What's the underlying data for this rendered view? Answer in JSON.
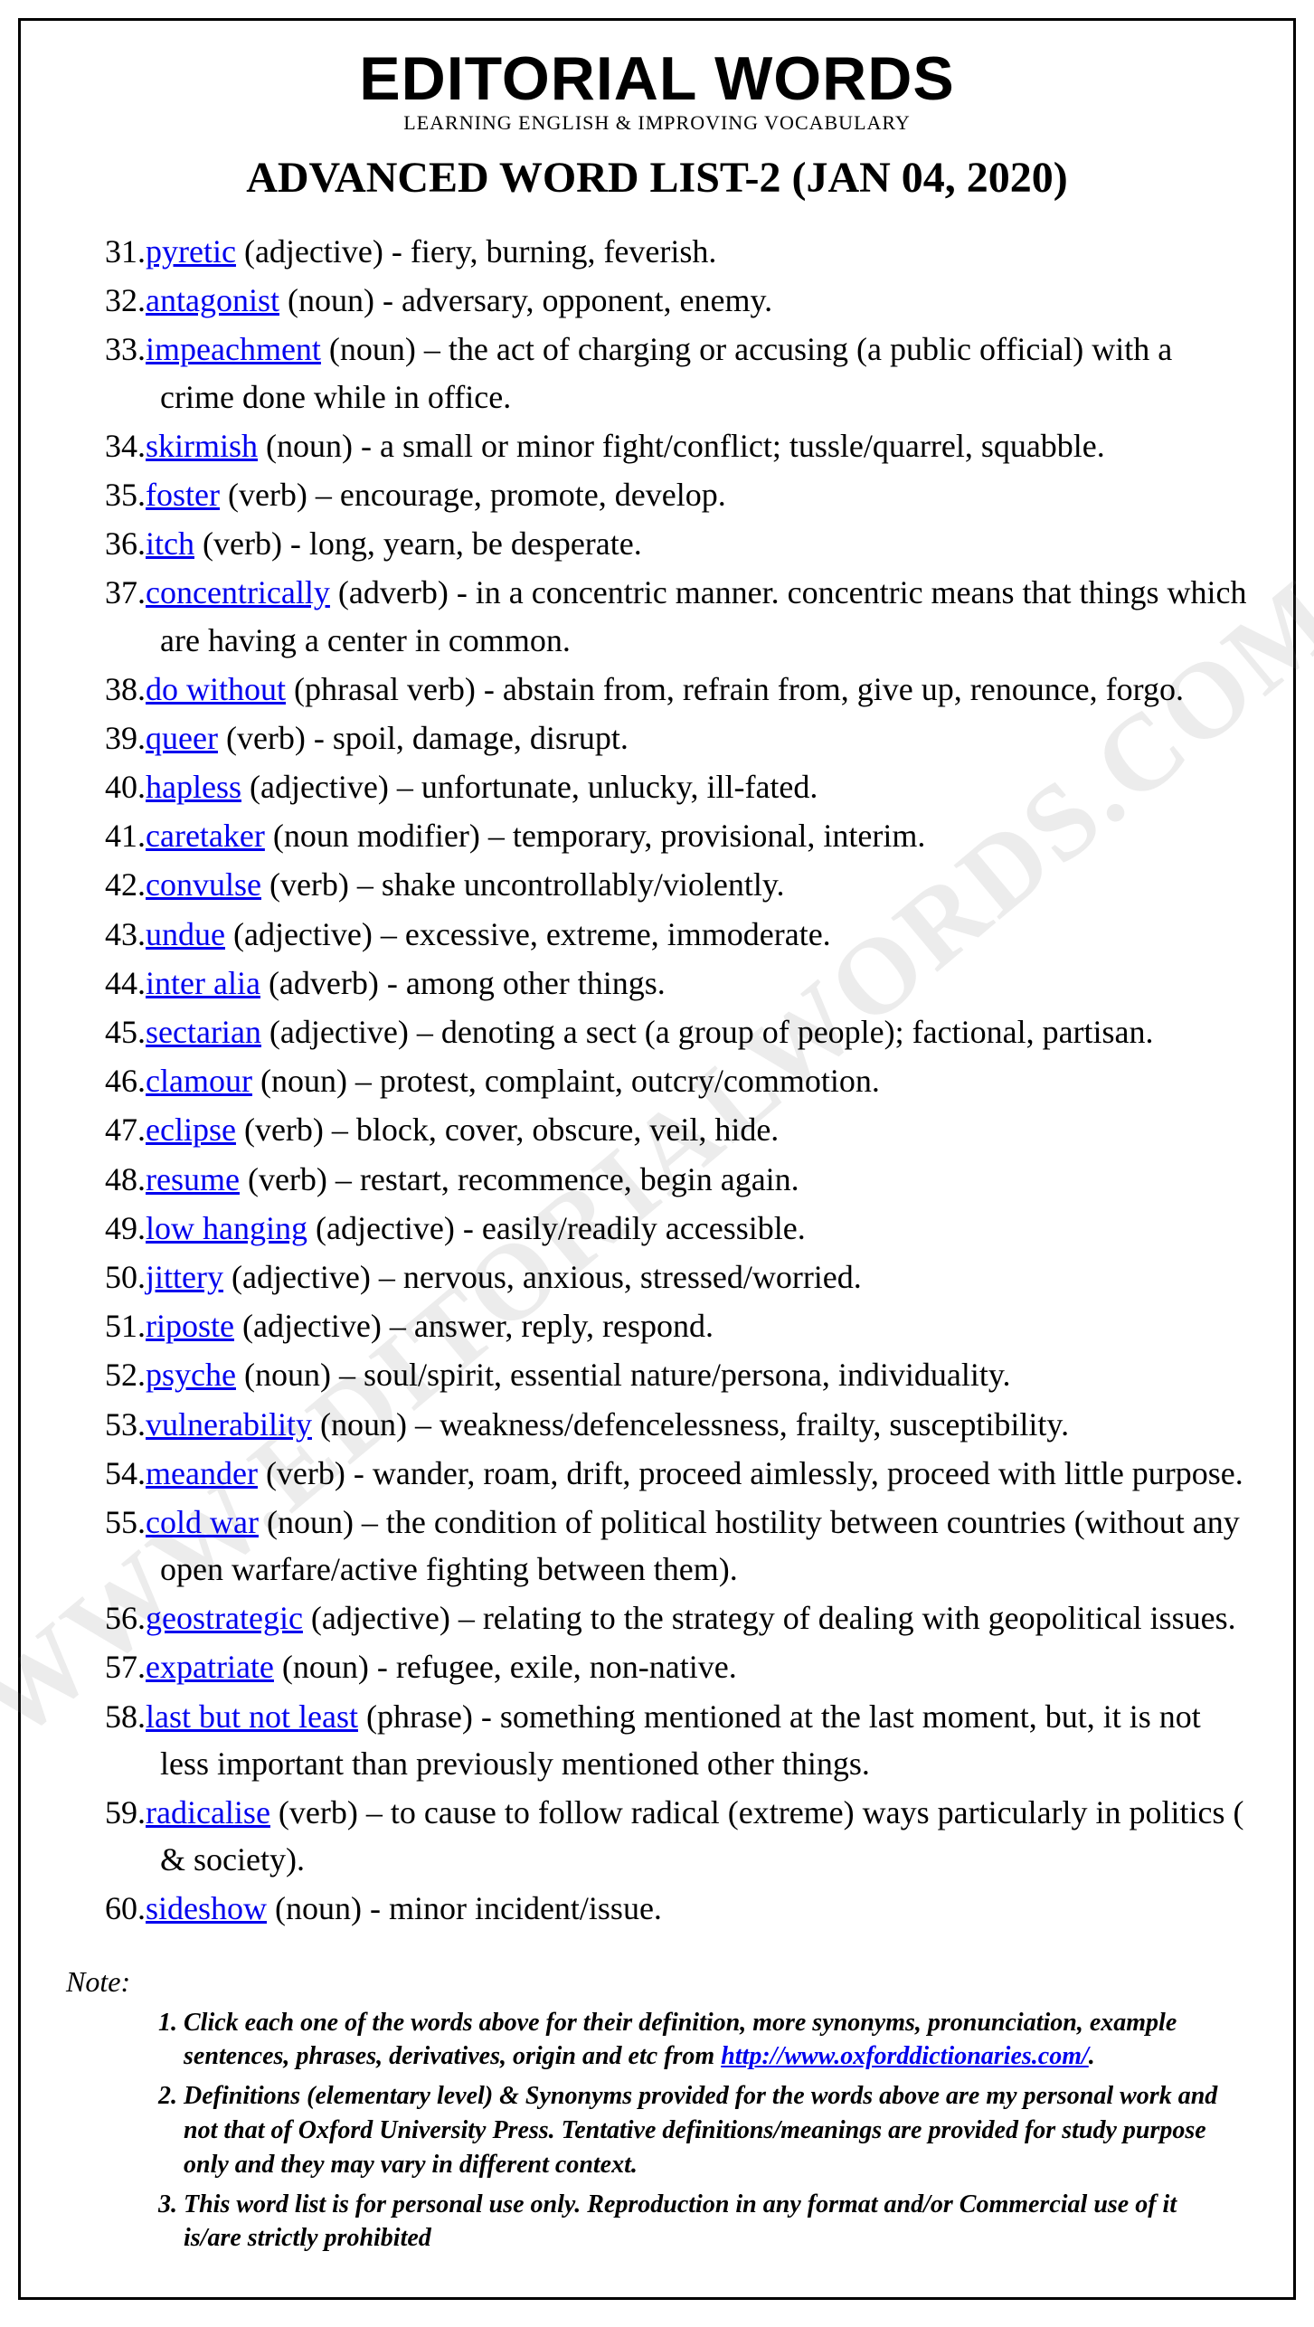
{
  "header": {
    "brand": "EDITORIAL WORDS",
    "tagline": "LEARNING ENGLISH & IMPROVING VOCABULARY"
  },
  "title": "ADVANCED WORD LIST-2 (JAN 04, 2020)",
  "watermark": "WWW.EDITORIALWORDS.COM",
  "start_number": 31,
  "entries": [
    {
      "word": "pyretic",
      "pos": "(adjective)",
      "def": "- fiery, burning, feverish."
    },
    {
      "word": "antagonist",
      "pos": "(noun)",
      "def": "- adversary, opponent, enemy."
    },
    {
      "word": "impeachment",
      "pos": "(noun)",
      "def": "– the act of charging or accusing (a public official) with a crime done while in office."
    },
    {
      "word": "skirmish",
      "pos": "(noun)",
      "def": "- a small or minor fight/conflict; tussle/quarrel, squabble."
    },
    {
      "word": "foster",
      "pos": "(verb)",
      "def": "– encourage, promote, develop."
    },
    {
      "word": "itch",
      "pos": "(verb)",
      "def": "- long, yearn, be desperate."
    },
    {
      "word": "concentrically",
      "pos": "(adverb)",
      "def": "- in a concentric manner. concentric means that things which are having a center in common."
    },
    {
      "word": "do without",
      "pos": "(phrasal verb)",
      "def": "- abstain from, refrain from, give up, renounce, forgo."
    },
    {
      "word": "queer",
      "pos": "(verb)",
      "def": "- spoil, damage, disrupt."
    },
    {
      "word": "hapless",
      "pos": "(adjective)",
      "def": "– unfortunate, unlucky, ill-fated."
    },
    {
      "word": "caretaker",
      "pos": "(noun modifier)",
      "def": "– temporary, provisional, interim."
    },
    {
      "word": "convulse",
      "pos": "(verb)",
      "def": "– shake uncontrollably/violently."
    },
    {
      "word": "undue",
      "pos": "(adjective)",
      "def": "– excessive, extreme, immoderate."
    },
    {
      "word": "inter alia",
      "pos": "(adverb)",
      "def": "- among other things."
    },
    {
      "word": "sectarian",
      "pos": "(adjective)",
      "def": "– denoting a sect (a group of people); factional, partisan."
    },
    {
      "word": "clamour",
      "pos": "(noun)",
      "def": "– protest, complaint, outcry/commotion."
    },
    {
      "word": "eclipse",
      "pos": "(verb)",
      "def": "– block, cover, obscure, veil, hide."
    },
    {
      "word": "resume",
      "pos": "(verb)",
      "def": "– restart, recommence, begin again."
    },
    {
      "word": "low hanging",
      "pos": "(adjective)",
      "def": "- easily/readily accessible."
    },
    {
      "word": "jittery",
      "pos": "(adjective)",
      "def": "– nervous, anxious, stressed/worried."
    },
    {
      "word": "riposte",
      "pos": "(adjective)",
      "def": "– answer, reply, respond."
    },
    {
      "word": "psyche",
      "pos": "(noun)",
      "def": "– soul/spirit, essential nature/persona, individuality."
    },
    {
      "word": "vulnerability",
      "pos": "(noun)",
      "def": "– weakness/defencelessness, frailty, susceptibility."
    },
    {
      "word": "meander",
      "pos": "(verb)",
      "def": "- wander, roam, drift, proceed aimlessly, proceed with little purpose."
    },
    {
      "word": "cold war",
      "pos": "(noun)",
      "def": "– the condition of political hostility between countries (without any open warfare/active fighting between them)."
    },
    {
      "word": "geostrategic",
      "pos": "(adjective)",
      "def": "– relating to the strategy of dealing with geopolitical issues."
    },
    {
      "word": "expatriate",
      "pos": "(noun)",
      "def": "- refugee, exile, non-native."
    },
    {
      "word": "last but not least",
      "pos": "(phrase)",
      "def": "- something mentioned at the last moment, but, it is not less important than previously mentioned other things."
    },
    {
      "word": "radicalise",
      "pos": "(verb)",
      "def": "– to cause to follow radical (extreme) ways particularly in politics ( & society)."
    },
    {
      "word": "sideshow",
      "pos": "(noun)",
      "def": "- minor incident/issue."
    }
  ],
  "note_label": "Note:",
  "notes": [
    {
      "pre": "Click each one of the words above for their definition, more synonyms, pronunciation, example sentences, phrases, derivatives, origin and etc from ",
      "link": "http://www.oxforddictionaries.com/",
      "post": "."
    },
    {
      "pre": "Definitions (elementary level) & Synonyms provided for the words above are my personal work and not that of Oxford University Press. Tentative definitions/meanings are provided for study purpose only and they may vary in different context.",
      "link": "",
      "post": ""
    },
    {
      "pre": "This word list is for personal use only. Reproduction in any format and/or Commercial use of it is/are strictly prohibited",
      "link": "",
      "post": ""
    }
  ],
  "colors": {
    "link": "#0000ee",
    "text": "#000000",
    "border": "#000000",
    "watermark": "rgba(128,128,128,0.15)"
  }
}
